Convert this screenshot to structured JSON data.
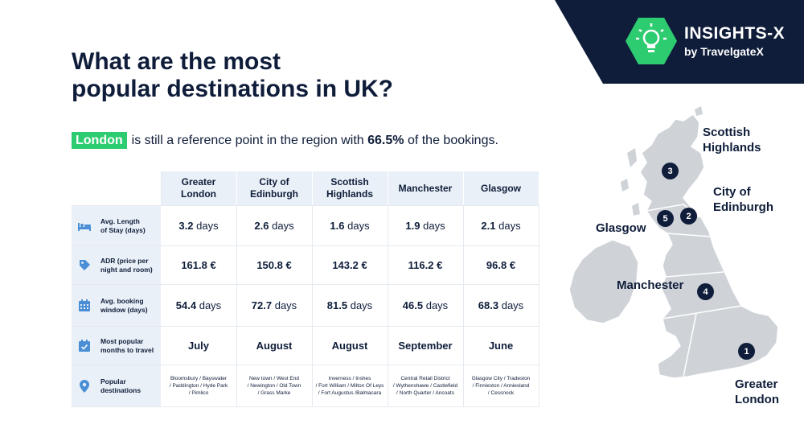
{
  "brand": {
    "name": "INSIGHTS-X",
    "byline": "by TravelgateX"
  },
  "title_line1": "What are the most",
  "title_line2": "popular destinations in UK?",
  "subtitle": {
    "highlight": "London",
    "text_before": "is still a reference point in the region with ",
    "percent": "66.5%",
    "text_after": " of the bookings."
  },
  "table": {
    "columns": [
      {
        "line1": "Greater",
        "line2": "London"
      },
      {
        "line1": "City of",
        "line2": "Edinburgh"
      },
      {
        "line1": "Scottish",
        "line2": "Highlands"
      },
      {
        "line1": "Manchester",
        "line2": ""
      },
      {
        "line1": "Glasgow",
        "line2": ""
      }
    ],
    "rows": [
      {
        "icon": "bed-icon",
        "label_line1": "Avg. Length",
        "label_line2": "of Stay (days)",
        "cells": [
          {
            "v": "3.2",
            "u": " days"
          },
          {
            "v": "2.6",
            "u": " days"
          },
          {
            "v": "1.6",
            "u": " days"
          },
          {
            "v": "1.9",
            "u": " days"
          },
          {
            "v": "2.1",
            "u": " days"
          }
        ]
      },
      {
        "icon": "price-tag-icon",
        "label_line1": "ADR (price per",
        "label_line2": "night and room)",
        "cells": [
          {
            "v": "161.8 €",
            "u": ""
          },
          {
            "v": "150.8 €",
            "u": ""
          },
          {
            "v": "143.2 €",
            "u": ""
          },
          {
            "v": "116.2 €",
            "u": ""
          },
          {
            "v": "96.8 €",
            "u": ""
          }
        ]
      },
      {
        "icon": "calendar-icon",
        "label_line1": "Avg. booking",
        "label_line2": "window (days)",
        "cells": [
          {
            "v": "54.4",
            "u": " days"
          },
          {
            "v": "72.7",
            "u": " days"
          },
          {
            "v": "81.5",
            "u": " days"
          },
          {
            "v": "46.5",
            "u": " days"
          },
          {
            "v": "68.3",
            "u": " days"
          }
        ]
      },
      {
        "icon": "calendar-check-icon",
        "label_line1": "Most popular",
        "label_line2": "months to travel",
        "cells": [
          {
            "v": "July",
            "u": ""
          },
          {
            "v": "August",
            "u": ""
          },
          {
            "v": "August",
            "u": ""
          },
          {
            "v": "September",
            "u": ""
          },
          {
            "v": "June",
            "u": ""
          }
        ]
      }
    ],
    "destinations_row": {
      "icon": "location-pin-icon",
      "label_line1": "Popular",
      "label_line2": "destinations",
      "cells": [
        [
          "Bloomsbury / Bayswater",
          "/ Paddington / Hyde Park",
          "/ Pimlico"
        ],
        [
          "New town / West End",
          "/ Newington / Old Town",
          "/ Grass Marke"
        ],
        [
          "Inverness / Inshes",
          "/ Fort William / Milton Of Leys",
          "/ Fort Augustus /Balmacara"
        ],
        [
          "Central Retail District",
          "/ Wythenshawe / Castlefield",
          "/ North Quarter / Ancoats"
        ],
        [
          "Glasgow City / Tradeston",
          "/ Finnieston / Anniesland",
          "/ Cessnock"
        ]
      ]
    }
  },
  "map": {
    "labels": [
      {
        "line1": "Scottish",
        "line2": "Highlands"
      },
      {
        "line1": "City of",
        "line2": "Edinburgh"
      },
      {
        "line1": "Glasgow",
        "line2": ""
      },
      {
        "line1": "Manchester",
        "line2": ""
      },
      {
        "line1": "Greater",
        "line2": "London"
      }
    ],
    "pins": [
      "3",
      "2",
      "5",
      "4",
      "1"
    ]
  },
  "colors": {
    "navy": "#0f1d3a",
    "green": "#2ecc71",
    "header_bg": "#e9f0f7",
    "icon_blue": "#4a8fd6",
    "map_grey": "#cfd3d8"
  }
}
